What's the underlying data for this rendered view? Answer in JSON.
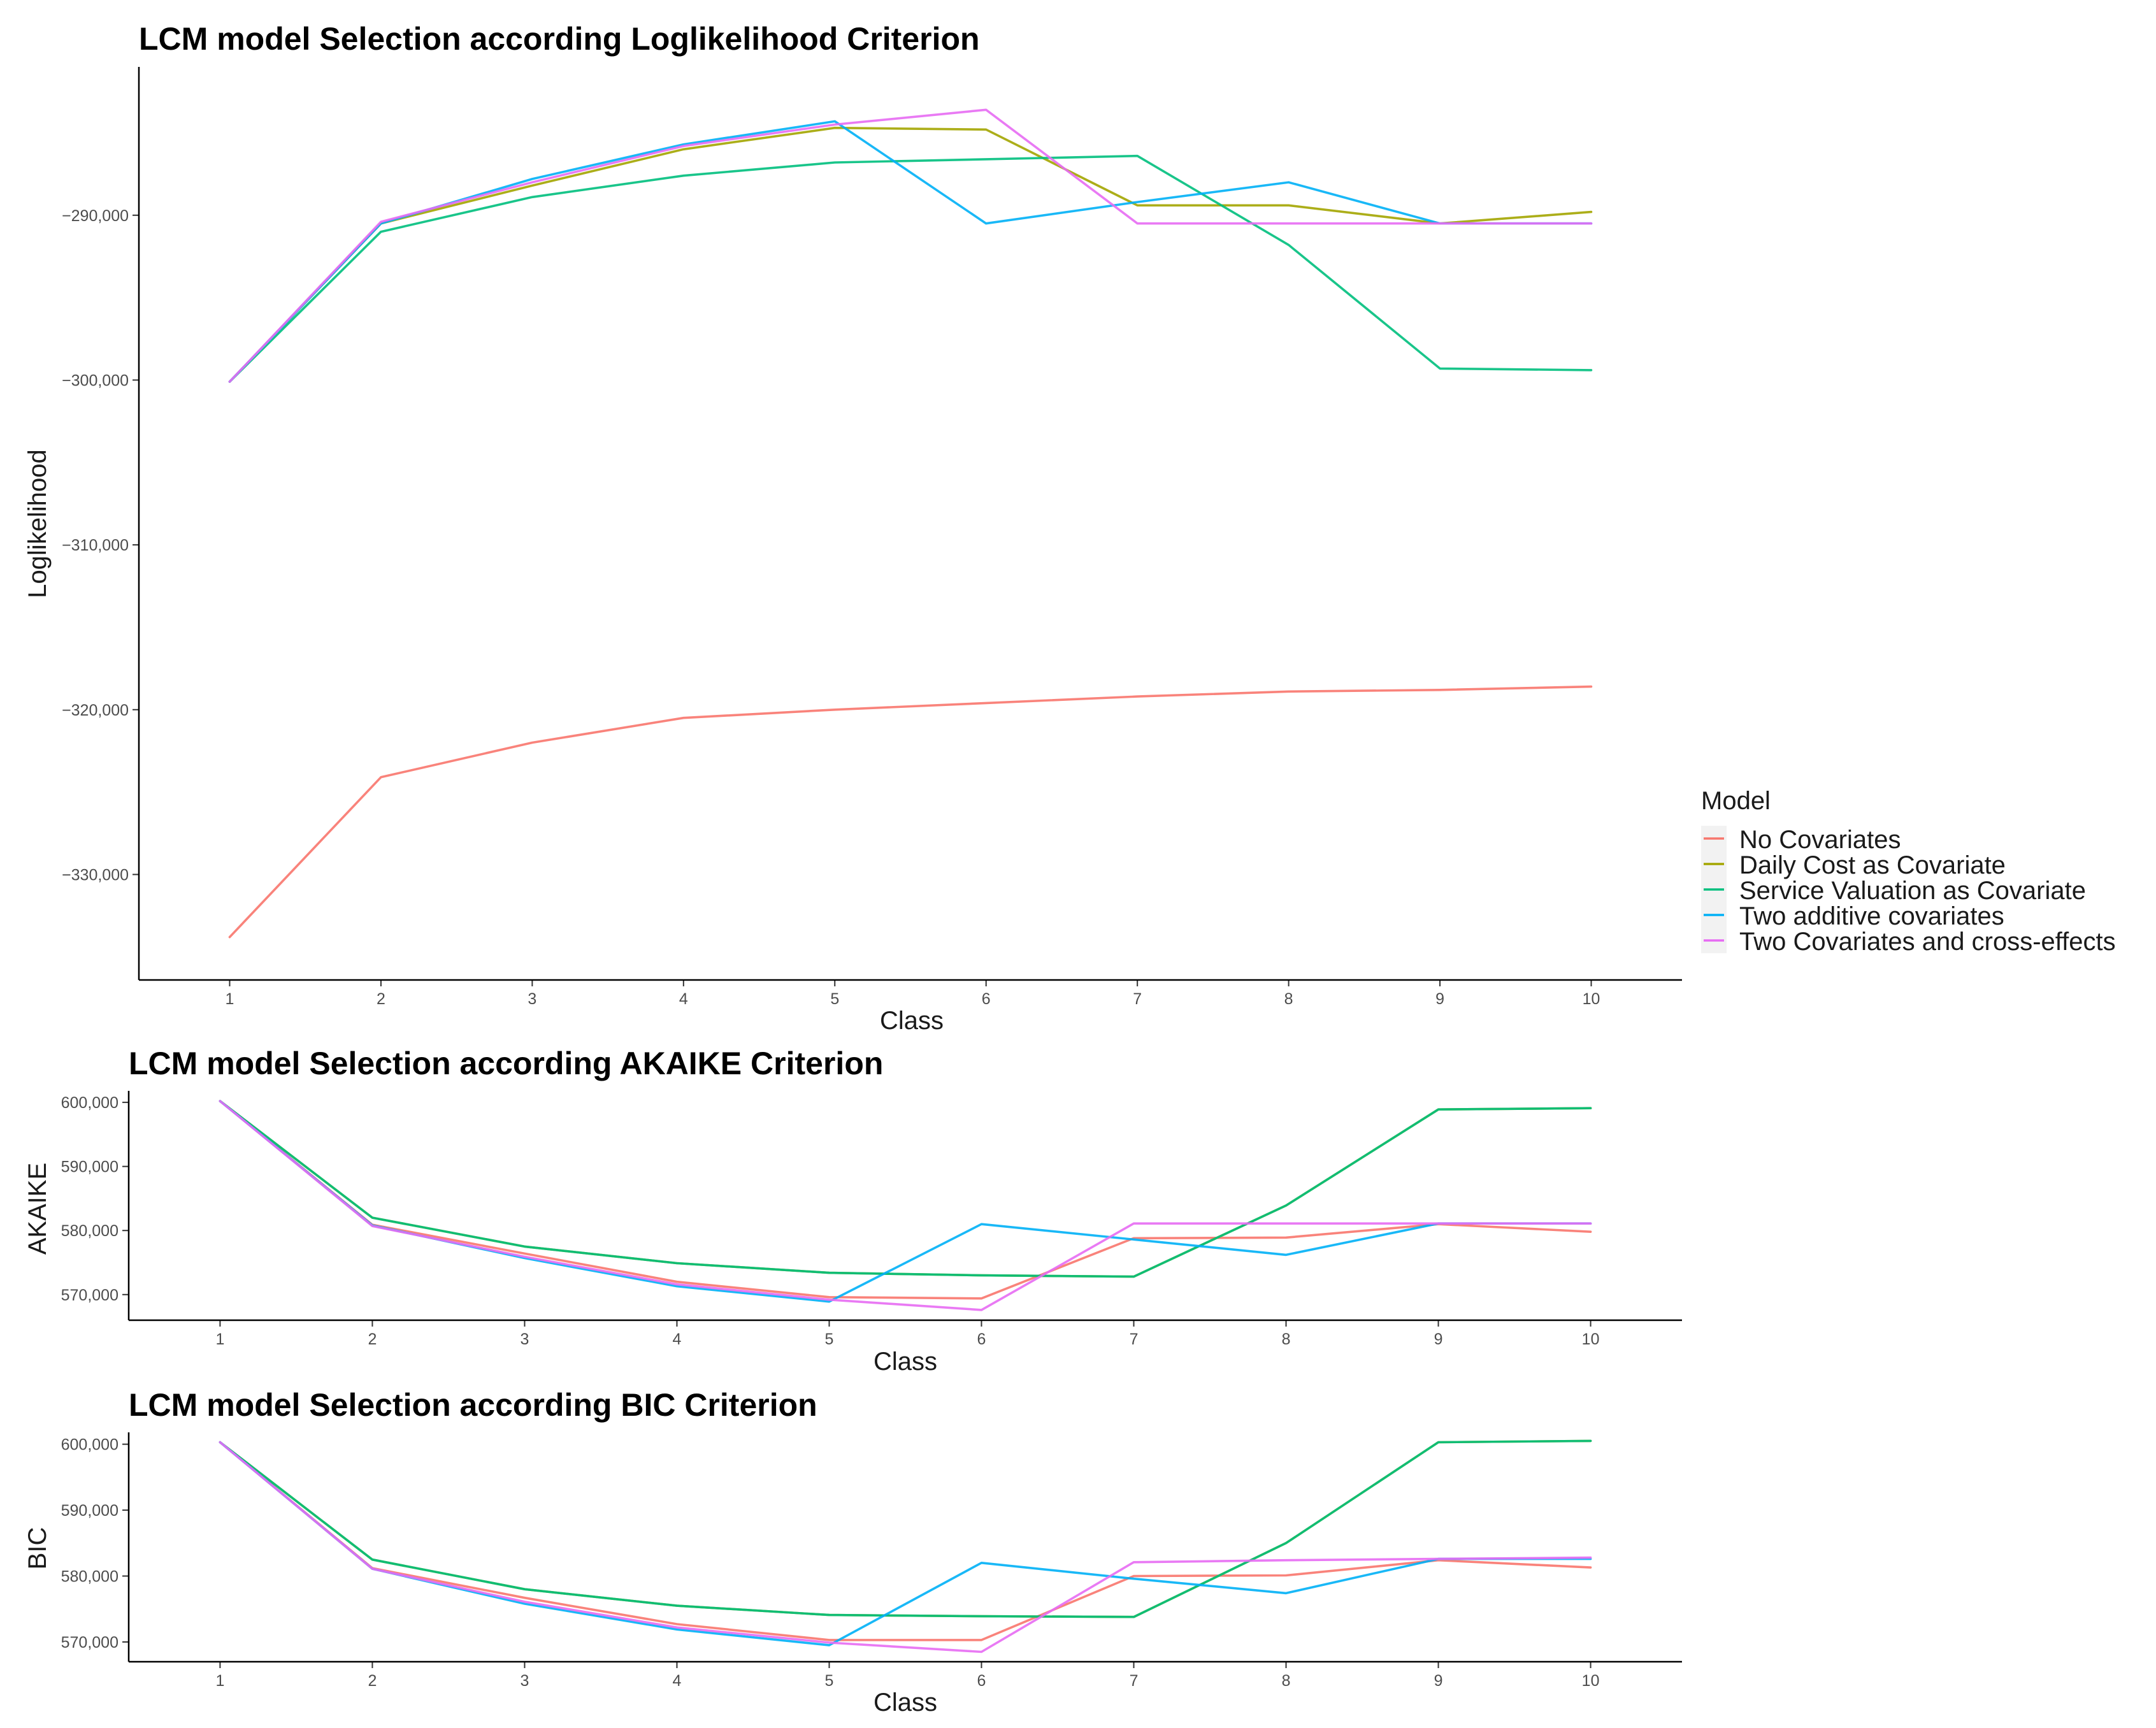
{
  "legend": {
    "title": "Model",
    "items": [
      {
        "name": "No Covariates",
        "color": "#F8766D"
      },
      {
        "name": "Daily Cost as Covariate",
        "color": "#A3A500"
      },
      {
        "name": "Service Valuation as Covariate",
        "color": "#00BF7D"
      },
      {
        "name": "Two additive covariates",
        "color": "#00B0F6"
      },
      {
        "name": "Two Covariates and cross-effects",
        "color": "#E76BF3"
      }
    ]
  },
  "chart_data": [
    {
      "type": "line",
      "title": "LCM model Selection according Loglikelihood Criterion",
      "xlabel": "Class",
      "ylabel": "Loglikelihood",
      "x": [
        1,
        2,
        3,
        4,
        5,
        6,
        7,
        8,
        9,
        10
      ],
      "xlim": [
        0.4,
        10.6
      ],
      "ylim": [
        -336400,
        -281000
      ],
      "yticks": [
        -330000,
        -320000,
        -310000,
        -300000,
        -290000
      ],
      "ytick_labels": [
        "−330,000",
        "−320,000",
        "−310,000",
        "−300,000",
        "−290,000"
      ],
      "grid": false,
      "series": [
        {
          "name": "No Covariates",
          "color": "#F8766D",
          "values": [
            -333800,
            -324100,
            -322000,
            -320500,
            -320000,
            -319600,
            -319200,
            -318900,
            -318800,
            -318600
          ]
        },
        {
          "name": "Daily Cost as Covariate",
          "color": "#A3A500",
          "values": [
            -300100,
            -290500,
            -288200,
            -286000,
            -284700,
            -284800,
            -289400,
            -289400,
            -290500,
            -289800
          ]
        },
        {
          "name": "Service Valuation as Covariate",
          "color": "#00BF7D",
          "values": [
            -300100,
            -291000,
            -288900,
            -287600,
            -286800,
            -286600,
            -286400,
            -291800,
            -299300,
            -299400
          ]
        },
        {
          "name": "Two additive covariates",
          "color": "#00B0F6",
          "values": [
            -300100,
            -290500,
            -287800,
            -285700,
            -284300,
            -290500,
            -289200,
            -288000,
            -290500,
            -290500
          ]
        },
        {
          "name": "Two Covariates and cross-effects",
          "color": "#E76BF3",
          "values": [
            -300100,
            -290400,
            -288000,
            -285800,
            -284500,
            -283600,
            -290500,
            -290500,
            -290500,
            -290500
          ]
        }
      ]
    },
    {
      "type": "line",
      "title": "LCM model Selection according AKAIKE Criterion",
      "xlabel": "Class",
      "ylabel": "AKAIKE",
      "x": [
        1,
        2,
        3,
        4,
        5,
        6,
        7,
        8,
        9,
        10
      ],
      "xlim": [
        0.4,
        10.6
      ],
      "ylim": [
        566000,
        601800
      ],
      "yticks": [
        570000,
        580000,
        590000,
        600000
      ],
      "ytick_labels": [
        "570,000",
        "580,000",
        "590,000",
        "600,000"
      ],
      "grid": false,
      "series": [
        {
          "name": "No Covariates",
          "color": "#F8766D",
          "values": [
            600200,
            580900,
            576400,
            572000,
            569600,
            569400,
            578800,
            578900,
            581000,
            579800
          ]
        },
        {
          "name": "Daily Cost as Covariate",
          "color": "#A3A500",
          "values": [
            600200,
            582000,
            577500,
            574900,
            573400,
            573000,
            572800,
            583900,
            598900,
            599100
          ]
        },
        {
          "name": "Service Valuation as Covariate",
          "color": "#00BF7D",
          "values": [
            600200,
            582000,
            577500,
            574900,
            573400,
            573000,
            572800,
            583900,
            598900,
            599100
          ]
        },
        {
          "name": "Two additive covariates",
          "color": "#00B0F6",
          "values": [
            600200,
            580800,
            575700,
            571300,
            568900,
            581000,
            578600,
            576200,
            581100,
            581100
          ]
        },
        {
          "name": "Two Covariates and cross-effects",
          "color": "#E76BF3",
          "values": [
            600200,
            580700,
            575900,
            571600,
            569200,
            567600,
            581100,
            581100,
            581100,
            581100
          ]
        }
      ]
    },
    {
      "type": "line",
      "title": "LCM model Selection according BIC Criterion",
      "xlabel": "Class",
      "ylabel": "BIC",
      "x": [
        1,
        2,
        3,
        4,
        5,
        6,
        7,
        8,
        9,
        10
      ],
      "xlim": [
        0.4,
        10.6
      ],
      "ylim": [
        567000,
        601800
      ],
      "yticks": [
        570000,
        580000,
        590000,
        600000
      ],
      "ytick_labels": [
        "570,000",
        "580,000",
        "590,000",
        "600,000"
      ],
      "grid": false,
      "series": [
        {
          "name": "No Covariates",
          "color": "#F8766D",
          "values": [
            600300,
            581200,
            576700,
            572700,
            570300,
            570300,
            580000,
            580100,
            582400,
            581300
          ]
        },
        {
          "name": "Daily Cost as Covariate",
          "color": "#A3A500",
          "values": [
            600300,
            582500,
            578000,
            575500,
            574100,
            573900,
            573800,
            585000,
            600300,
            600500
          ]
        },
        {
          "name": "Service Valuation as Covariate",
          "color": "#00BF7D",
          "values": [
            600300,
            582500,
            578000,
            575500,
            574100,
            573900,
            573800,
            585000,
            600300,
            600500
          ]
        },
        {
          "name": "Two additive covariates",
          "color": "#00B0F6",
          "values": [
            600300,
            581100,
            575800,
            571900,
            569500,
            582000,
            579600,
            577400,
            582600,
            582600
          ]
        },
        {
          "name": "Two Covariates and cross-effects",
          "color": "#E76BF3",
          "values": [
            600300,
            581100,
            576100,
            572200,
            569900,
            568500,
            582100,
            582400,
            582600,
            582800
          ]
        }
      ]
    }
  ]
}
